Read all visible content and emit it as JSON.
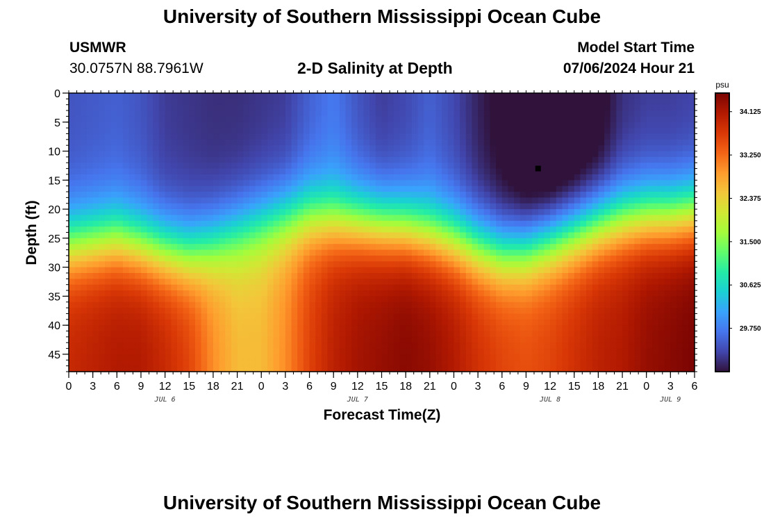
{
  "page": {
    "title_top": "University of Southern Mississippi Ocean Cube",
    "title_bottom": "University of Southern Mississippi Ocean Cube",
    "station_name": "USMWR",
    "station_coords": "30.0757N  88.7961W",
    "plot_subtitle": "2-D Salinity at Depth",
    "model_label": "Model Start Time",
    "model_time": "07/06/2024 Hour 21"
  },
  "chart_data": {
    "type": "heatmap",
    "title": "2-D Salinity at Depth",
    "xlabel": "Forecast Time(Z)",
    "ylabel": "Depth (ft)",
    "x_range_hours": [
      0,
      78
    ],
    "y_range_ft": [
      0,
      48
    ],
    "x_tick_labels": [
      "0",
      "3",
      "6",
      "9",
      "12",
      "15",
      "18",
      "21",
      "0",
      "3",
      "6",
      "9",
      "12",
      "15",
      "18",
      "21",
      "0",
      "3",
      "6",
      "9",
      "12",
      "15",
      "18",
      "21",
      "0",
      "3",
      "6"
    ],
    "x_tick_hours": [
      0,
      3,
      6,
      9,
      12,
      15,
      18,
      21,
      24,
      27,
      30,
      33,
      36,
      39,
      42,
      45,
      48,
      51,
      54,
      57,
      60,
      63,
      66,
      69,
      72,
      75,
      78
    ],
    "day_labels": [
      {
        "label": "JUL 6",
        "hour": 12
      },
      {
        "label": "JUL 7",
        "hour": 36
      },
      {
        "label": "JUL 8",
        "hour": 60
      },
      {
        "label": "JUL 9",
        "hour": 75
      }
    ],
    "y_ticks": [
      0,
      5,
      10,
      15,
      20,
      25,
      30,
      35,
      40,
      45
    ],
    "colorbar": {
      "unit": "psu",
      "min": 28.875,
      "max": 34.5,
      "tick_values": [
        29.75,
        30.625,
        31.5,
        32.375,
        33.25,
        34.125
      ],
      "tick_labels": [
        "29.750",
        "30.625",
        "31.500",
        "32.375",
        "33.250",
        "34.125"
      ],
      "colors": [
        "#30123b",
        "#4145ab",
        "#4675ed",
        "#39a2fc",
        "#1bcfd4",
        "#24eca6",
        "#61fc6c",
        "#a4fc3b",
        "#d1e834",
        "#f3c63a",
        "#fe9b2d",
        "#f36315",
        "#d93806",
        "#b11901",
        "#7a0403"
      ]
    },
    "marker": {
      "hour": 58.5,
      "depth_ft": 13,
      "label": "station marker"
    },
    "interface_depth_ft": {
      "hours": [
        0,
        6,
        9,
        12,
        15,
        18,
        21,
        24,
        27,
        30,
        33,
        36,
        39,
        42,
        45,
        48,
        51,
        54,
        57,
        60,
        63,
        66,
        69,
        72,
        75,
        78
      ],
      "values": [
        26,
        25,
        26,
        27,
        27.5,
        26,
        24,
        22.5,
        21.5,
        21,
        21.5,
        22,
        22.5,
        23,
        24,
        25,
        26.5,
        27.5,
        27,
        25.5,
        24,
        22.5,
        21.5,
        21,
        21,
        20.5
      ]
    },
    "surface_salinity_psu": {
      "hours": [
        0,
        6,
        9,
        12,
        15,
        18,
        21,
        24,
        27,
        30,
        33,
        36,
        39,
        42,
        45,
        48,
        51,
        54,
        57,
        60,
        63,
        66,
        69,
        72,
        75,
        78
      ],
      "values": [
        29.4,
        29.5,
        29.4,
        29.2,
        29.15,
        29.1,
        29.1,
        29.15,
        29.2,
        29.5,
        29.7,
        29.4,
        29.2,
        29.3,
        29.5,
        29.3,
        29.0,
        28.75,
        28.5,
        28.4,
        28.5,
        28.7,
        29.1,
        29.2,
        29.2,
        29.25
      ]
    },
    "bottom_salinity_psu": {
      "hours": [
        0,
        6,
        9,
        12,
        15,
        18,
        21,
        24,
        27,
        30,
        33,
        36,
        39,
        42,
        45,
        48,
        51,
        54,
        57,
        60,
        63,
        66,
        69,
        72,
        75,
        78
      ],
      "values": [
        33.9,
        34.1,
        34.1,
        33.9,
        33.6,
        33.0,
        32.6,
        32.6,
        33.0,
        33.6,
        34.0,
        34.2,
        34.3,
        34.4,
        34.3,
        34.1,
        33.8,
        33.6,
        33.5,
        33.6,
        33.8,
        34.0,
        34.1,
        34.3,
        34.4,
        34.5
      ]
    }
  }
}
